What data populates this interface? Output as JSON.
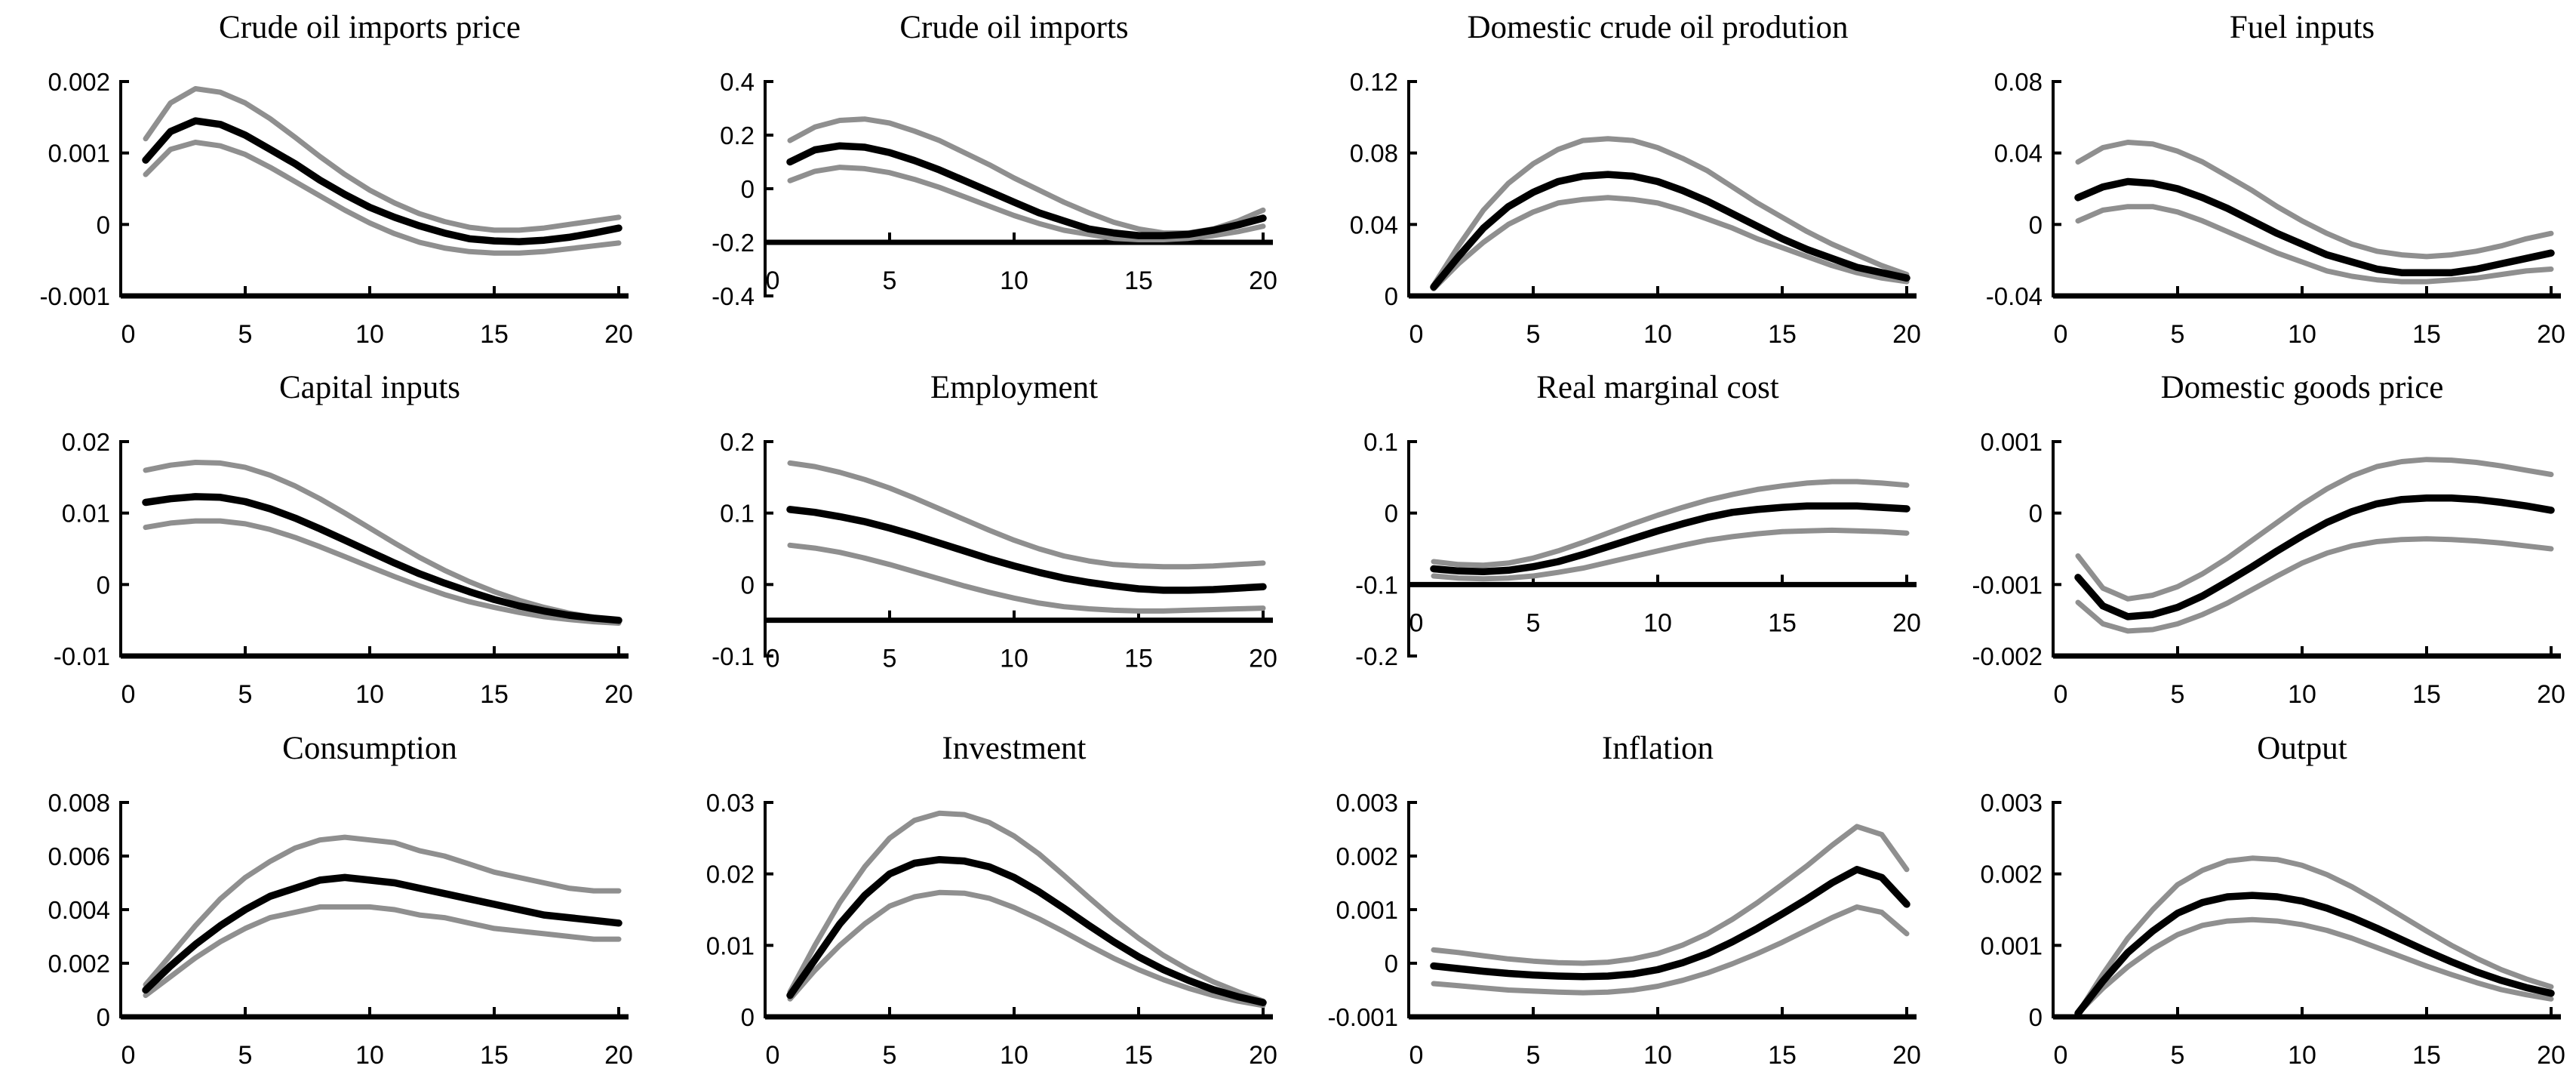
{
  "page": {
    "background": "#ffffff"
  },
  "colors": {
    "median_line": "#000000",
    "band_line": "#8f8f8f",
    "axis": "#000000"
  },
  "x_values": [
    1,
    2,
    3,
    4,
    5,
    6,
    7,
    8,
    9,
    10,
    11,
    12,
    13,
    14,
    15,
    16,
    17,
    18,
    19,
    20
  ],
  "x_tick_labels": [
    "0",
    "5",
    "10",
    "15",
    "20"
  ],
  "chart_data": [
    {
      "type": "line",
      "title": "Crude oil imports price",
      "ylim": [
        -0.001,
        0.002
      ],
      "axis_cross": -0.001,
      "yticks": [
        "0.002",
        "0.001",
        "0",
        "-0.001"
      ],
      "series": {
        "upper": [
          0.0012,
          0.0017,
          0.0019,
          0.00185,
          0.0017,
          0.00148,
          0.00122,
          0.00095,
          0.0007,
          0.00048,
          0.0003,
          0.00015,
          4e-05,
          -4e-05,
          -8e-05,
          -8e-05,
          -5e-05,
          0.0,
          5e-05,
          0.0001
        ],
        "mid": [
          0.0009,
          0.0013,
          0.00145,
          0.0014,
          0.00125,
          0.00105,
          0.00085,
          0.00062,
          0.00042,
          0.00024,
          0.0001,
          -2e-05,
          -0.00012,
          -0.0002,
          -0.00023,
          -0.00024,
          -0.00022,
          -0.00018,
          -0.00012,
          -5e-05
        ],
        "lower": [
          0.0007,
          0.00105,
          0.00115,
          0.0011,
          0.00098,
          0.0008,
          0.0006,
          0.0004,
          0.0002,
          2e-05,
          -0.00013,
          -0.00025,
          -0.00033,
          -0.00038,
          -0.0004,
          -0.0004,
          -0.00038,
          -0.00034,
          -0.0003,
          -0.00026
        ]
      }
    },
    {
      "type": "line",
      "title": "Crude oil imports",
      "ylim": [
        -0.4,
        0.4
      ],
      "axis_cross": -0.2,
      "yticks": [
        "0.4",
        "0.2",
        "0",
        "-0.2",
        "-0.4"
      ],
      "series": {
        "upper": [
          0.18,
          0.23,
          0.255,
          0.26,
          0.245,
          0.215,
          0.18,
          0.135,
          0.09,
          0.04,
          -0.005,
          -0.05,
          -0.09,
          -0.125,
          -0.15,
          -0.165,
          -0.165,
          -0.15,
          -0.12,
          -0.08
        ],
        "mid": [
          0.1,
          0.145,
          0.16,
          0.155,
          0.135,
          0.105,
          0.07,
          0.03,
          -0.01,
          -0.05,
          -0.09,
          -0.12,
          -0.15,
          -0.165,
          -0.175,
          -0.175,
          -0.17,
          -0.155,
          -0.135,
          -0.11
        ],
        "lower": [
          0.03,
          0.065,
          0.08,
          0.075,
          0.06,
          0.035,
          0.005,
          -0.03,
          -0.065,
          -0.1,
          -0.13,
          -0.155,
          -0.17,
          -0.185,
          -0.19,
          -0.19,
          -0.185,
          -0.175,
          -0.16,
          -0.14
        ]
      }
    },
    {
      "type": "line",
      "title": "Domestic crude oil prodution",
      "ylim": [
        0,
        0.12
      ],
      "axis_cross": 0,
      "yticks": [
        "0.12",
        "0.08",
        "0.04",
        "0"
      ],
      "series": {
        "upper": [
          0.006,
          0.028,
          0.048,
          0.063,
          0.074,
          0.082,
          0.087,
          0.088,
          0.087,
          0.083,
          0.077,
          0.07,
          0.061,
          0.052,
          0.044,
          0.036,
          0.029,
          0.023,
          0.017,
          0.012
        ],
        "mid": [
          0.005,
          0.022,
          0.038,
          0.05,
          0.058,
          0.064,
          0.067,
          0.068,
          0.067,
          0.064,
          0.059,
          0.053,
          0.046,
          0.039,
          0.032,
          0.026,
          0.021,
          0.016,
          0.013,
          0.01
        ],
        "lower": [
          0.004,
          0.018,
          0.03,
          0.04,
          0.047,
          0.052,
          0.054,
          0.055,
          0.054,
          0.052,
          0.048,
          0.043,
          0.038,
          0.032,
          0.027,
          0.022,
          0.017,
          0.013,
          0.01,
          0.008
        ]
      }
    },
    {
      "type": "line",
      "title": "Fuel inputs",
      "ylim": [
        -0.04,
        0.08
      ],
      "axis_cross": -0.04,
      "yticks": [
        "0.08",
        "0.04",
        "0",
        "-0.04"
      ],
      "series": {
        "upper": [
          0.035,
          0.043,
          0.046,
          0.045,
          0.041,
          0.035,
          0.027,
          0.019,
          0.01,
          0.002,
          -0.005,
          -0.011,
          -0.015,
          -0.017,
          -0.018,
          -0.017,
          -0.015,
          -0.012,
          -0.008,
          -0.005
        ],
        "mid": [
          0.015,
          0.021,
          0.024,
          0.023,
          0.02,
          0.015,
          0.009,
          0.002,
          -0.005,
          -0.011,
          -0.017,
          -0.021,
          -0.025,
          -0.027,
          -0.027,
          -0.027,
          -0.025,
          -0.022,
          -0.019,
          -0.016
        ],
        "lower": [
          0.002,
          0.008,
          0.01,
          0.01,
          0.007,
          0.002,
          -0.004,
          -0.01,
          -0.016,
          -0.021,
          -0.026,
          -0.029,
          -0.031,
          -0.032,
          -0.032,
          -0.031,
          -0.03,
          -0.028,
          -0.026,
          -0.025
        ]
      }
    },
    {
      "type": "line",
      "title": "Capital inputs",
      "ylim": [
        -0.01,
        0.02
      ],
      "axis_cross": -0.01,
      "yticks": [
        "0.02",
        "0.01",
        "0",
        "-0.01"
      ],
      "series": {
        "upper": [
          0.016,
          0.0167,
          0.0171,
          0.017,
          0.0164,
          0.0153,
          0.0138,
          0.012,
          0.01,
          0.0079,
          0.0058,
          0.0038,
          0.002,
          0.0004,
          -0.001,
          -0.0022,
          -0.0032,
          -0.004,
          -0.0046,
          -0.005
        ],
        "mid": [
          0.0115,
          0.012,
          0.0123,
          0.0122,
          0.0116,
          0.0106,
          0.0093,
          0.0078,
          0.0062,
          0.0046,
          0.003,
          0.0015,
          0.0002,
          -0.001,
          -0.0021,
          -0.003,
          -0.0037,
          -0.0043,
          -0.0047,
          -0.005
        ],
        "lower": [
          0.008,
          0.0086,
          0.0089,
          0.0089,
          0.0085,
          0.0077,
          0.0066,
          0.0053,
          0.0039,
          0.0025,
          0.0011,
          -0.0002,
          -0.0014,
          -0.0024,
          -0.0032,
          -0.0039,
          -0.0045,
          -0.0049,
          -0.0052,
          -0.0054
        ]
      }
    },
    {
      "type": "line",
      "title": "Employment",
      "ylim": [
        -0.1,
        0.2
      ],
      "axis_cross": -0.05,
      "yticks": [
        "0.2",
        "0.1",
        "0",
        "-0.1"
      ],
      "series": {
        "upper": [
          0.17,
          0.165,
          0.157,
          0.147,
          0.135,
          0.121,
          0.106,
          0.091,
          0.076,
          0.062,
          0.05,
          0.04,
          0.033,
          0.028,
          0.026,
          0.025,
          0.025,
          0.026,
          0.028,
          0.03
        ],
        "mid": [
          0.105,
          0.101,
          0.095,
          0.088,
          0.079,
          0.069,
          0.058,
          0.047,
          0.036,
          0.026,
          0.017,
          0.009,
          0.003,
          -0.002,
          -0.006,
          -0.008,
          -0.008,
          -0.007,
          -0.005,
          -0.003
        ],
        "lower": [
          0.055,
          0.051,
          0.045,
          0.037,
          0.028,
          0.018,
          0.008,
          -0.002,
          -0.011,
          -0.019,
          -0.026,
          -0.031,
          -0.034,
          -0.036,
          -0.037,
          -0.037,
          -0.036,
          -0.035,
          -0.034,
          -0.033
        ]
      }
    },
    {
      "type": "line",
      "title": "Real marginal cost",
      "ylim": [
        -0.2,
        0.1
      ],
      "axis_cross": -0.1,
      "yticks": [
        "0.1",
        "0",
        "-0.1",
        "-0.2"
      ],
      "series": {
        "upper": [
          -0.068,
          -0.072,
          -0.073,
          -0.07,
          -0.063,
          -0.053,
          -0.041,
          -0.028,
          -0.015,
          -0.003,
          0.008,
          0.018,
          0.026,
          0.033,
          0.038,
          0.042,
          0.044,
          0.044,
          0.042,
          0.039
        ],
        "mid": [
          -0.078,
          -0.081,
          -0.082,
          -0.08,
          -0.075,
          -0.068,
          -0.058,
          -0.047,
          -0.036,
          -0.025,
          -0.015,
          -0.006,
          0.001,
          0.005,
          0.008,
          0.01,
          0.01,
          0.01,
          0.008,
          0.006
        ],
        "lower": [
          -0.088,
          -0.091,
          -0.092,
          -0.091,
          -0.088,
          -0.083,
          -0.077,
          -0.069,
          -0.061,
          -0.053,
          -0.045,
          -0.038,
          -0.033,
          -0.029,
          -0.026,
          -0.025,
          -0.024,
          -0.025,
          -0.026,
          -0.028
        ]
      }
    },
    {
      "type": "line",
      "title": "Domestic goods price",
      "ylim": [
        -0.002,
        0.001
      ],
      "axis_cross": -0.002,
      "yticks": [
        "0.001",
        "0",
        "-0.001",
        "-0.002"
      ],
      "series": {
        "upper": [
          -0.0006,
          -0.00105,
          -0.0012,
          -0.00115,
          -0.00103,
          -0.00085,
          -0.00063,
          -0.00038,
          -0.00013,
          0.00012,
          0.00034,
          0.00052,
          0.00065,
          0.00072,
          0.00075,
          0.00074,
          0.00071,
          0.00066,
          0.0006,
          0.00054
        ],
        "mid": [
          -0.0009,
          -0.0013,
          -0.00145,
          -0.00142,
          -0.00132,
          -0.00116,
          -0.00096,
          -0.00075,
          -0.00053,
          -0.00032,
          -0.00013,
          2e-05,
          0.00013,
          0.00019,
          0.00021,
          0.00021,
          0.00019,
          0.00015,
          0.0001,
          4e-05
        ],
        "lower": [
          -0.00125,
          -0.00155,
          -0.00165,
          -0.00163,
          -0.00155,
          -0.00142,
          -0.00126,
          -0.00107,
          -0.00088,
          -0.0007,
          -0.00056,
          -0.00046,
          -0.0004,
          -0.00037,
          -0.00036,
          -0.00037,
          -0.00039,
          -0.00042,
          -0.00046,
          -0.0005
        ]
      }
    },
    {
      "type": "line",
      "title": "Consumption",
      "ylim": [
        0,
        0.008
      ],
      "axis_cross": 0,
      "yticks": [
        "0.008",
        "0.006",
        "0.004",
        "0.002",
        "0"
      ],
      "series": {
        "upper": [
          0.0012,
          0.0023,
          0.0034,
          0.0044,
          0.0052,
          0.0058,
          0.0063,
          0.0066,
          0.0067,
          0.0066,
          0.0065,
          0.0062,
          0.006,
          0.0057,
          0.0054,
          0.0052,
          0.005,
          0.0048,
          0.0047,
          0.0047
        ],
        "mid": [
          0.001,
          0.0019,
          0.0027,
          0.0034,
          0.004,
          0.0045,
          0.0048,
          0.0051,
          0.0052,
          0.0051,
          0.005,
          0.0048,
          0.0046,
          0.0044,
          0.0042,
          0.004,
          0.0038,
          0.0037,
          0.0036,
          0.0035
        ],
        "lower": [
          0.0008,
          0.0015,
          0.0022,
          0.0028,
          0.0033,
          0.0037,
          0.0039,
          0.0041,
          0.0041,
          0.0041,
          0.004,
          0.0038,
          0.0037,
          0.0035,
          0.0033,
          0.0032,
          0.0031,
          0.003,
          0.0029,
          0.0029
        ]
      }
    },
    {
      "type": "line",
      "title": "Investment",
      "ylim": [
        0,
        0.03
      ],
      "axis_cross": 0,
      "yticks": [
        "0.03",
        "0.02",
        "0.01",
        "0"
      ],
      "series": {
        "upper": [
          0.0035,
          0.01,
          0.016,
          0.021,
          0.025,
          0.0275,
          0.0285,
          0.0283,
          0.0272,
          0.0253,
          0.0228,
          0.0198,
          0.0167,
          0.0137,
          0.011,
          0.0086,
          0.0066,
          0.0049,
          0.0035,
          0.0022
        ],
        "mid": [
          0.003,
          0.008,
          0.013,
          0.017,
          0.02,
          0.0215,
          0.022,
          0.0218,
          0.021,
          0.0195,
          0.0175,
          0.0152,
          0.0128,
          0.0105,
          0.0084,
          0.0066,
          0.0051,
          0.0038,
          0.0028,
          0.002
        ],
        "lower": [
          0.0025,
          0.0065,
          0.01,
          0.013,
          0.0155,
          0.0168,
          0.0174,
          0.0173,
          0.0166,
          0.0153,
          0.0137,
          0.0119,
          0.01,
          0.0082,
          0.0066,
          0.0052,
          0.004,
          0.003,
          0.0022,
          0.0016
        ]
      }
    },
    {
      "type": "line",
      "title": "Inflation",
      "ylim": [
        -0.001,
        0.003
      ],
      "axis_cross": -0.001,
      "yticks": [
        "0.003",
        "0.002",
        "0.001",
        "0",
        "-0.001"
      ],
      "series": {
        "upper": [
          0.00025,
          0.0002,
          0.00014,
          8e-05,
          4e-05,
          1e-05,
          0.0,
          2e-05,
          8e-05,
          0.00018,
          0.00034,
          0.00055,
          0.00082,
          0.00113,
          0.00147,
          0.00182,
          0.0022,
          0.00255,
          0.0024,
          0.00175
        ],
        "mid": [
          -5e-05,
          -0.0001,
          -0.00015,
          -0.00019,
          -0.00022,
          -0.00024,
          -0.00025,
          -0.00024,
          -0.0002,
          -0.00012,
          1e-05,
          0.00018,
          0.0004,
          0.00065,
          0.00092,
          0.0012,
          0.0015,
          0.00175,
          0.0016,
          0.0011
        ],
        "lower": [
          -0.00038,
          -0.00042,
          -0.00046,
          -0.0005,
          -0.00052,
          -0.00054,
          -0.00055,
          -0.00054,
          -0.0005,
          -0.00043,
          -0.00032,
          -0.00018,
          -1e-05,
          0.00018,
          0.00039,
          0.00062,
          0.00085,
          0.00105,
          0.00095,
          0.00055
        ]
      }
    },
    {
      "type": "line",
      "title": "Output",
      "ylim": [
        0,
        0.003
      ],
      "axis_cross": 0,
      "yticks": [
        "0.003",
        "0.002",
        "0.001",
        "0"
      ],
      "series": {
        "upper": [
          5e-05,
          0.0006,
          0.0011,
          0.0015,
          0.00185,
          0.00205,
          0.00218,
          0.00222,
          0.0022,
          0.00212,
          0.00199,
          0.00182,
          0.00162,
          0.00141,
          0.0012,
          0.001,
          0.00082,
          0.00066,
          0.00053,
          0.00042
        ],
        "mid": [
          5e-05,
          0.0005,
          0.0009,
          0.0012,
          0.00145,
          0.0016,
          0.00168,
          0.0017,
          0.00168,
          0.00162,
          0.00152,
          0.00139,
          0.00124,
          0.00108,
          0.00092,
          0.00077,
          0.00063,
          0.00051,
          0.00041,
          0.00033
        ],
        "lower": [
          5e-05,
          0.0004,
          0.0007,
          0.00095,
          0.00115,
          0.00128,
          0.00134,
          0.00136,
          0.00134,
          0.00129,
          0.00121,
          0.0011,
          0.00097,
          0.00084,
          0.00071,
          0.00059,
          0.00048,
          0.00038,
          0.00031,
          0.00025
        ]
      }
    }
  ]
}
